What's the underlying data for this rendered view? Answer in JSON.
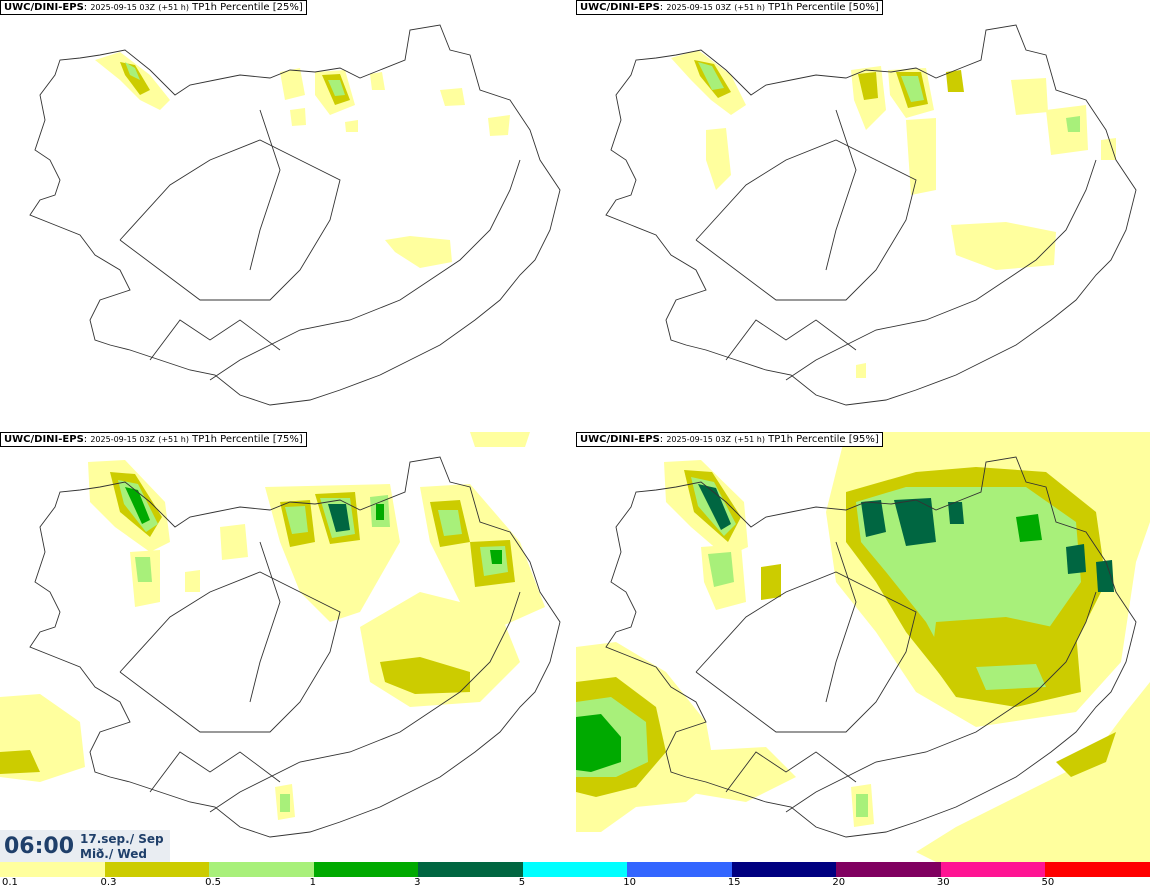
{
  "panels": [
    {
      "model": "UWC/DINI-EPS",
      "run": "2025-09-15 03Z",
      "lead": "(+51 h)",
      "title": "TP1h Percentile [25%]"
    },
    {
      "model": "UWC/DINI-EPS",
      "run": "2025-09-15 03Z",
      "lead": "(+51 h)",
      "title": "TP1h Percentile [50%]"
    },
    {
      "model": "UWC/DINI-EPS",
      "run": "2025-09-15 03Z",
      "lead": "(+51 h)",
      "title": "TP1h Percentile [75%]"
    },
    {
      "model": "UWC/DINI-EPS",
      "run": "2025-09-15 03Z",
      "lead": "(+51 h)",
      "title": "TP1h Percentile [95%]"
    }
  ],
  "timebox": {
    "time": "06:00",
    "date_line1": "17.sep./ Sep",
    "date_line2": "Mið./ Wed"
  },
  "legend": {
    "ticks": [
      "0.1",
      "0.3",
      "0.5",
      "1",
      "3",
      "5",
      "10",
      "15",
      "20",
      "30",
      "50"
    ],
    "colors": [
      "#ffff9e",
      "#cccc00",
      "#a8f07a",
      "#00aa00",
      "#006641",
      "#00ffff",
      "#3366ff",
      "#000080",
      "#800060",
      "#ff1493",
      "#ff0000"
    ]
  },
  "colors": {
    "coast": "#333333",
    "roads": "#666666"
  }
}
